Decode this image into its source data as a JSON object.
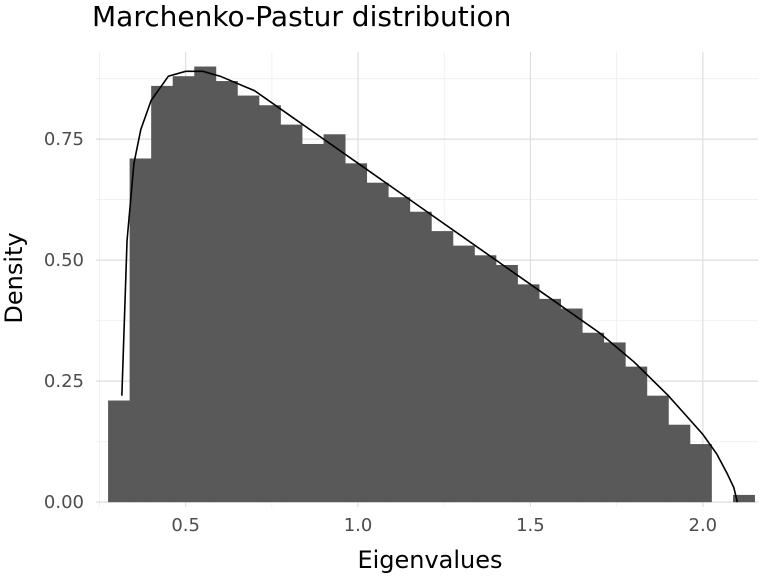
{
  "chart_data": {
    "type": "bar",
    "title": "Marchenko-Pastur distribution",
    "xlabel": "Eigenvalues",
    "ylabel": "Density",
    "x_ticks": [
      "0.5",
      "1.0",
      "1.5",
      "2.0"
    ],
    "y_ticks": [
      "0.00",
      "0.25",
      "0.50",
      "0.75"
    ],
    "xlim": [
      0.24,
      2.16
    ],
    "ylim": [
      -0.01,
      0.93
    ],
    "grid": true,
    "legend": "none",
    "colors": {
      "bars": "#595959",
      "curve": "#000000",
      "grid": "#dedede"
    },
    "histogram": {
      "bin_width": 0.0625,
      "bin_starts": [
        0.275,
        0.3375,
        0.4,
        0.4625,
        0.525,
        0.5875,
        0.65,
        0.7125,
        0.775,
        0.8375,
        0.9,
        0.9625,
        1.025,
        1.0875,
        1.15,
        1.2125,
        1.275,
        1.3375,
        1.4,
        1.4625,
        1.525,
        1.5875,
        1.65,
        1.7125,
        1.775,
        1.8375,
        1.9,
        1.9625,
        2.025,
        2.0875
      ],
      "densities": [
        0.21,
        0.71,
        0.86,
        0.88,
        0.9,
        0.87,
        0.84,
        0.82,
        0.78,
        0.74,
        0.76,
        0.7,
        0.66,
        0.63,
        0.6,
        0.56,
        0.53,
        0.51,
        0.49,
        0.45,
        0.42,
        0.4,
        0.35,
        0.33,
        0.28,
        0.22,
        0.16,
        0.12,
        0.0,
        0.015
      ]
    },
    "density_curve": {
      "lambda_min": 0.31,
      "lambda_max": 2.1,
      "x": [
        0.315,
        0.33,
        0.35,
        0.37,
        0.4,
        0.45,
        0.5,
        0.55,
        0.6,
        0.7,
        0.8,
        0.9,
        1.0,
        1.1,
        1.2,
        1.3,
        1.4,
        1.5,
        1.6,
        1.7,
        1.8,
        1.9,
        1.95,
        2.0,
        2.04,
        2.07,
        2.09,
        2.1
      ],
      "y": [
        0.22,
        0.54,
        0.7,
        0.77,
        0.83,
        0.88,
        0.89,
        0.89,
        0.88,
        0.85,
        0.8,
        0.75,
        0.7,
        0.65,
        0.6,
        0.55,
        0.5,
        0.45,
        0.4,
        0.35,
        0.29,
        0.22,
        0.18,
        0.14,
        0.1,
        0.06,
        0.03,
        0.0
      ]
    }
  }
}
